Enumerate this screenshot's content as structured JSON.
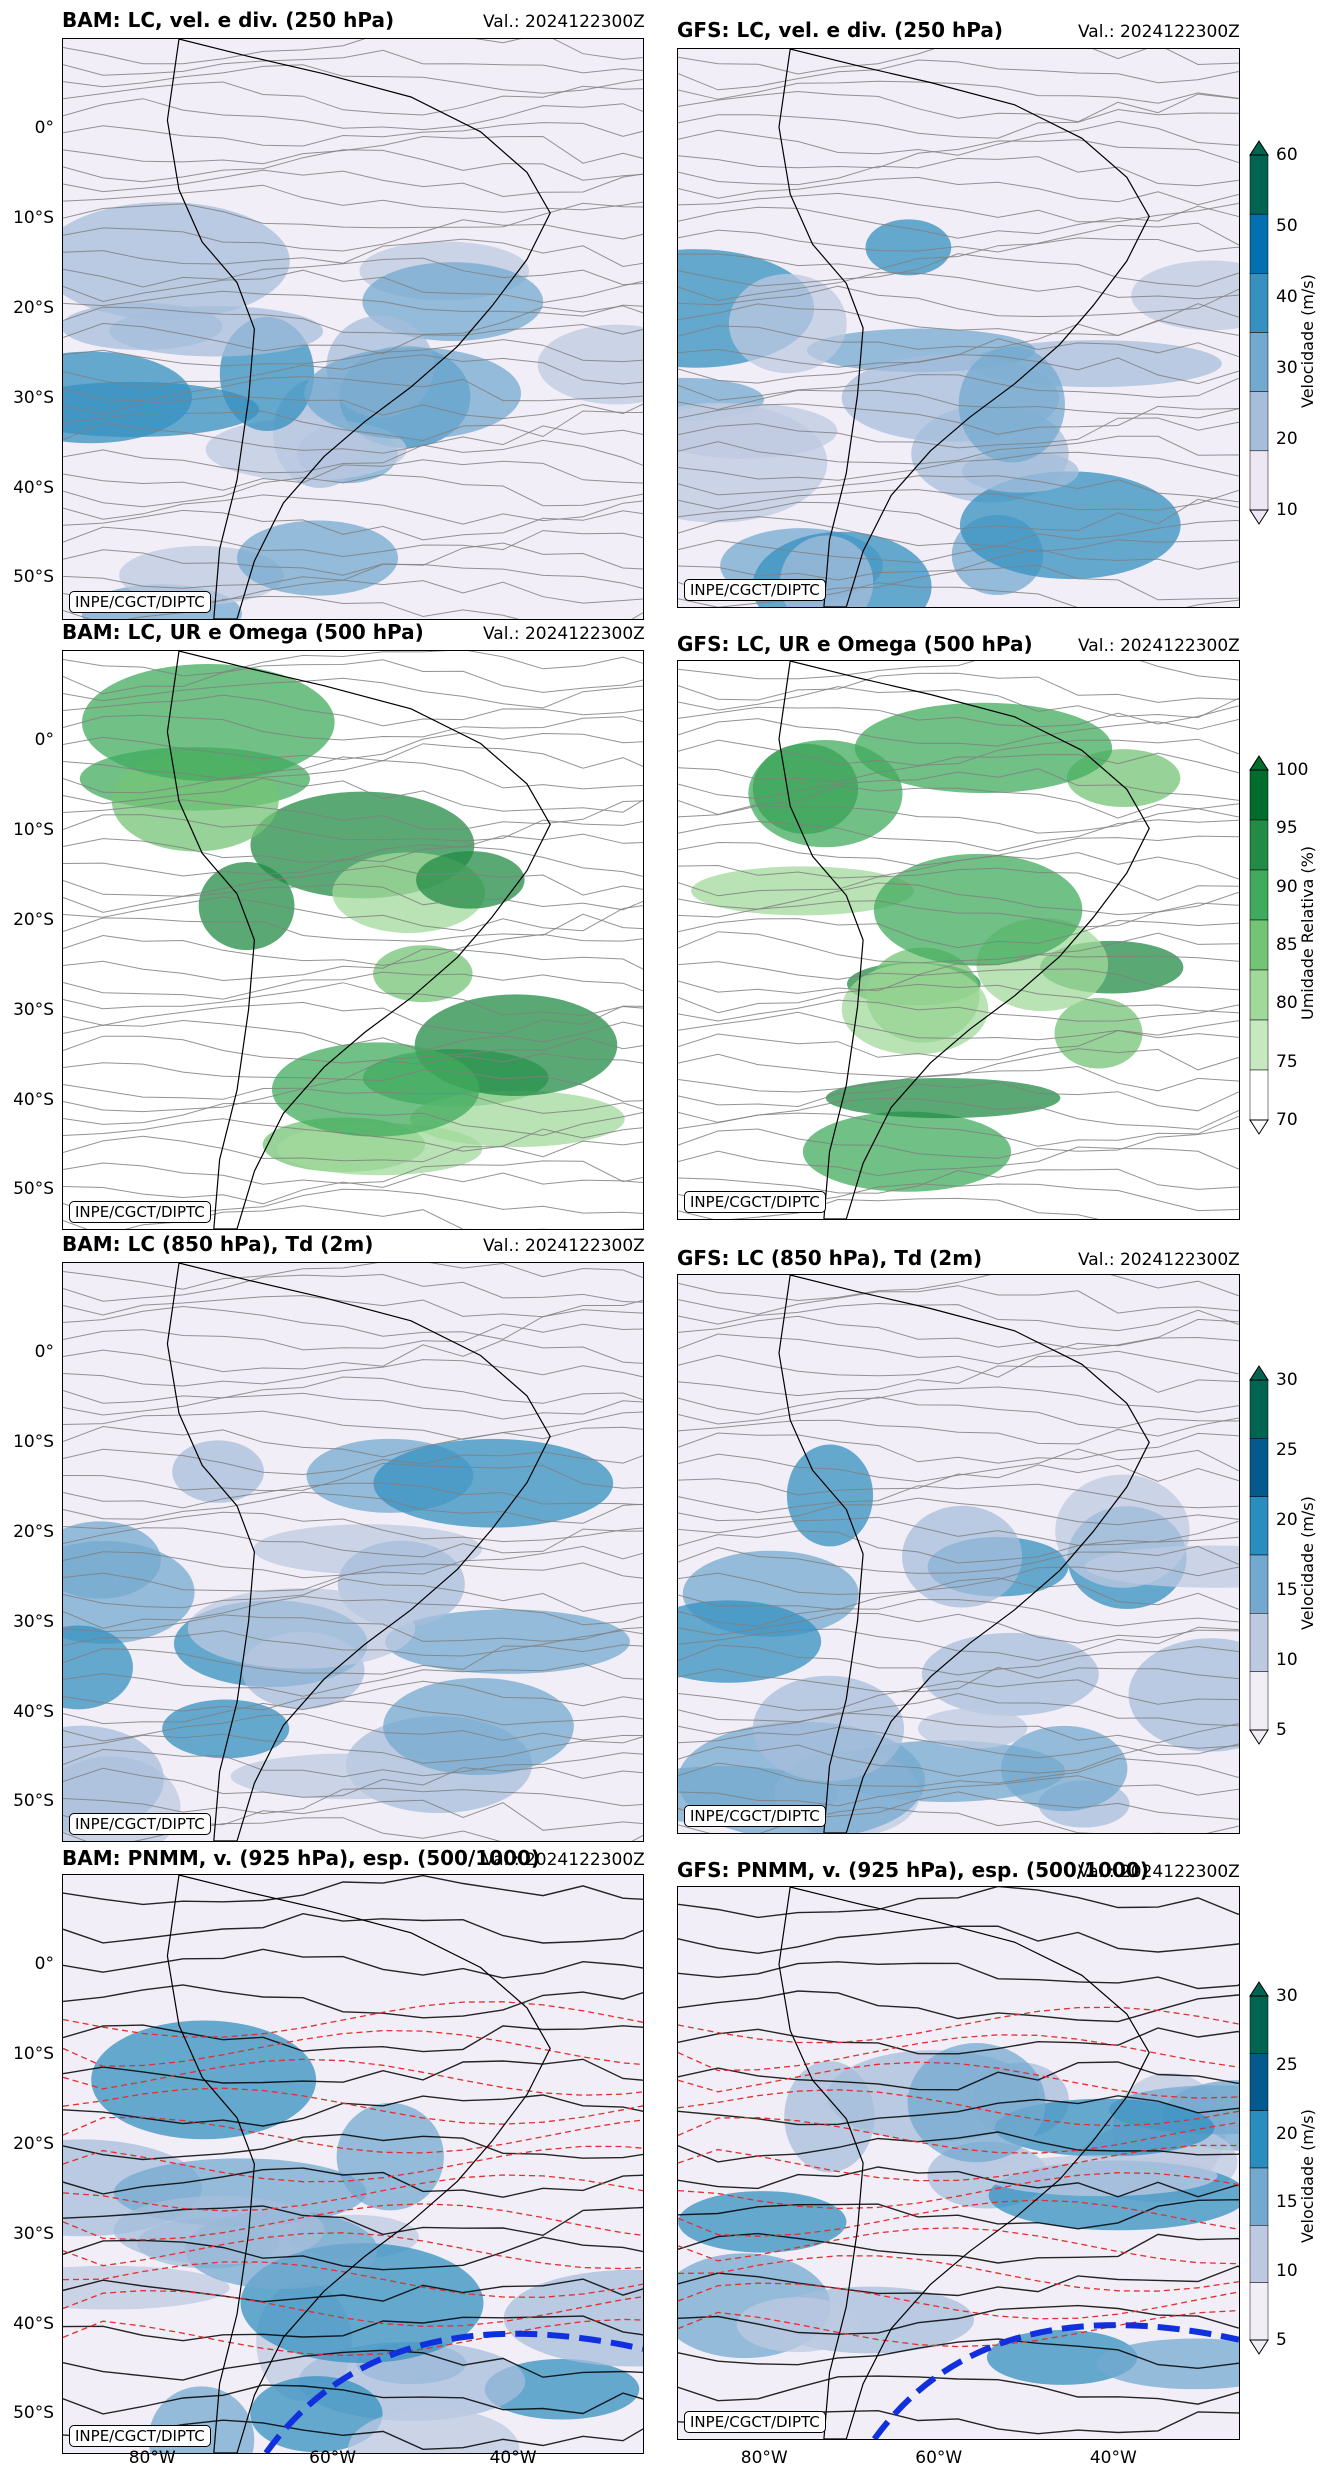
{
  "credit": "INPE/CGCT/DIPTC",
  "valid": "Val.: 2024122300Z",
  "lat_ticks": [
    "0°",
    "10°S",
    "20°S",
    "30°S",
    "40°S",
    "50°S"
  ],
  "lon_ticks": [
    "80°W",
    "60°W",
    "40°W"
  ],
  "rows": [
    {
      "bam_title": "BAM: LC, vel. e div. (250 hPa)",
      "gfs_title": "GFS: LC, vel. e div. (250 hPa)",
      "colorbar": {
        "label": "Velocidade (m/s)",
        "ticks": [
          "10",
          "20",
          "30",
          "40",
          "50",
          "60"
        ],
        "colors": [
          "#ece7f2",
          "#a6bddb",
          "#74a9cf",
          "#3690c0",
          "#0570b0",
          "#016450"
        ]
      }
    },
    {
      "bam_title": "BAM: LC, UR e Omega (500 hPa)",
      "gfs_title": "GFS: LC, UR e Omega (500 hPa)",
      "colorbar": {
        "label": "Umidade Relativa (%)",
        "ticks": [
          "70",
          "75",
          "80",
          "85",
          "90",
          "95",
          "100"
        ],
        "colors": [
          "#ffffff",
          "#c7e9c0",
          "#a1d99b",
          "#74c476",
          "#41ab5d",
          "#238b45",
          "#006d2c"
        ]
      }
    },
    {
      "bam_title": "BAM: LC (850 hPa), Td (2m)",
      "gfs_title": "GFS: LC (850 hPa), Td (2m)",
      "colorbar": {
        "label": "Velocidade (m/s)",
        "ticks": [
          "5",
          "10",
          "15",
          "20",
          "25",
          "30"
        ],
        "colors": [
          "#f1eef6",
          "#bdc9e1",
          "#74a9cf",
          "#2b8cbe",
          "#045a8d",
          "#016450"
        ]
      }
    },
    {
      "bam_title": "BAM: PNMM, v. (925 hPa), esp. (500/1000)",
      "gfs_title": "GFS: PNMM, v. (925 hPa), esp. (500/1000)",
      "colorbar": {
        "label": "Velocidade (m/s)",
        "ticks": [
          "5",
          "10",
          "15",
          "20",
          "25",
          "30"
        ],
        "colors": [
          "#f1eef6",
          "#bdc9e1",
          "#74a9cf",
          "#2b8cbe",
          "#045a8d",
          "#016450"
        ]
      }
    }
  ],
  "colors": {
    "stream": "#808080",
    "coast": "#000000",
    "contour_red": "#e03030",
    "front_blue": "#1030e0"
  }
}
